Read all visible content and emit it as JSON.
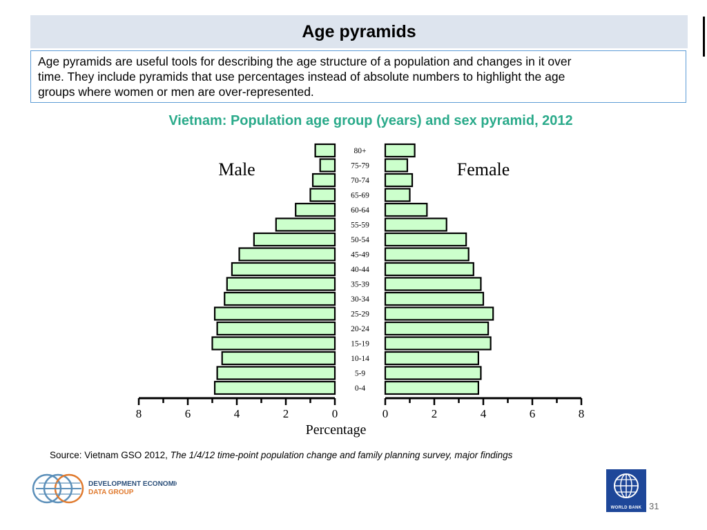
{
  "slide": {
    "title": "Age pyramids",
    "intro_line1": "Age pyramids are useful tools for describing the age structure of a population and changes in it over",
    "intro_line2": "time.  They include pyramids that use percentages instead of absolute numbers to highlight the age",
    "intro_line3": "groups where women or men are over-represented.",
    "source_prefix": "Source: Vietnam GSO 2012, ",
    "source_title": "The 1/4/12 time-point population change and family planning survey, major findings",
    "logo_line1": "DEVELOPMENT ECONOMICS",
    "logo_line2": "DATA GROUP",
    "bank_label": "WORLD BANK",
    "page_number": "31",
    "accent_color": "#2aaa8a",
    "border_color": "#5b9bd5",
    "bar_color": "#ccffcc"
  },
  "chart_data": {
    "type": "bar",
    "title": "Vietnam: Population  age group (years)  and sex pyramid, 2012",
    "xlabel": "Percentage",
    "left_label": "Male",
    "right_label": "Female",
    "xlim": [
      0,
      8
    ],
    "ticks": [
      "8",
      "6",
      "4",
      "2",
      "0",
      "0",
      "2",
      "4",
      "6",
      "8"
    ],
    "categories": [
      "80+",
      "75-79",
      "70-74",
      "65-69",
      "60-64",
      "55-59",
      "50-54",
      "45-49",
      "40-44",
      "35-39",
      "30-34",
      "25-29",
      "20-24",
      "15-19",
      "10-14",
      "5-9",
      "0-4"
    ],
    "series": [
      {
        "name": "Male",
        "values": [
          0.8,
          0.6,
          0.9,
          1.0,
          1.6,
          2.4,
          3.3,
          3.9,
          4.2,
          4.4,
          4.5,
          4.9,
          4.8,
          5.0,
          4.6,
          4.8,
          4.9
        ]
      },
      {
        "name": "Female",
        "values": [
          1.2,
          0.9,
          1.1,
          1.0,
          1.7,
          2.5,
          3.3,
          3.4,
          3.6,
          3.9,
          4.0,
          4.4,
          4.2,
          4.3,
          3.8,
          3.9,
          3.8
        ]
      }
    ],
    "grid": false
  }
}
